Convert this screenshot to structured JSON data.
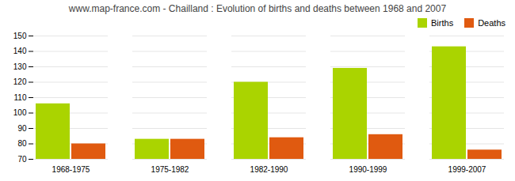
{
  "chart_data": {
    "type": "bar",
    "title": "www.map-france.com - Chailland : Evolution of births and deaths between 1968 and 2007",
    "categories": [
      "1968-1975",
      "1975-1982",
      "1982-1990",
      "1990-1999",
      "1999-2007"
    ],
    "series": [
      {
        "name": "Births",
        "color": "#aad400",
        "values": [
          106,
          83,
          120,
          129,
          143
        ]
      },
      {
        "name": "Deaths",
        "color": "#e05a10",
        "values": [
          80,
          83,
          84,
          86,
          76
        ]
      }
    ],
    "ylim": [
      70,
      150
    ],
    "yticks": [
      70,
      80,
      90,
      100,
      110,
      120,
      130,
      140,
      150
    ],
    "grid": true,
    "legend": "upper right"
  }
}
